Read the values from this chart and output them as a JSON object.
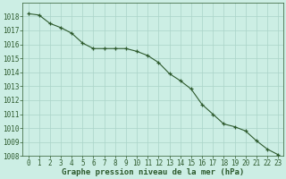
{
  "x": [
    0,
    1,
    2,
    3,
    4,
    5,
    6,
    7,
    8,
    9,
    10,
    11,
    12,
    13,
    14,
    15,
    16,
    17,
    18,
    19,
    20,
    21,
    22,
    23
  ],
  "y": [
    1018.2,
    1018.1,
    1017.5,
    1017.2,
    1016.8,
    1016.1,
    1015.7,
    1015.7,
    1015.7,
    1015.7,
    1015.5,
    1015.2,
    1014.7,
    1013.9,
    1013.4,
    1012.8,
    1011.7,
    1011.0,
    1010.3,
    1010.1,
    1009.8,
    1009.1,
    1008.5,
    1008.1
  ],
  "ylim_min": 1008,
  "ylim_max": 1019,
  "yticks": [
    1008,
    1009,
    1010,
    1011,
    1012,
    1013,
    1014,
    1015,
    1016,
    1017,
    1018
  ],
  "xlabel": "Graphe pression niveau de la mer (hPa)",
  "line_color": "#2d5a2d",
  "marker_color": "#2d5a2d",
  "bg_color": "#cceee4",
  "grid_color": "#aad4c8",
  "axis_label_color": "#2d5a2d",
  "tick_label_color": "#2d5a2d",
  "tick_fontsize": 5.5,
  "xlabel_fontsize": 6.5
}
